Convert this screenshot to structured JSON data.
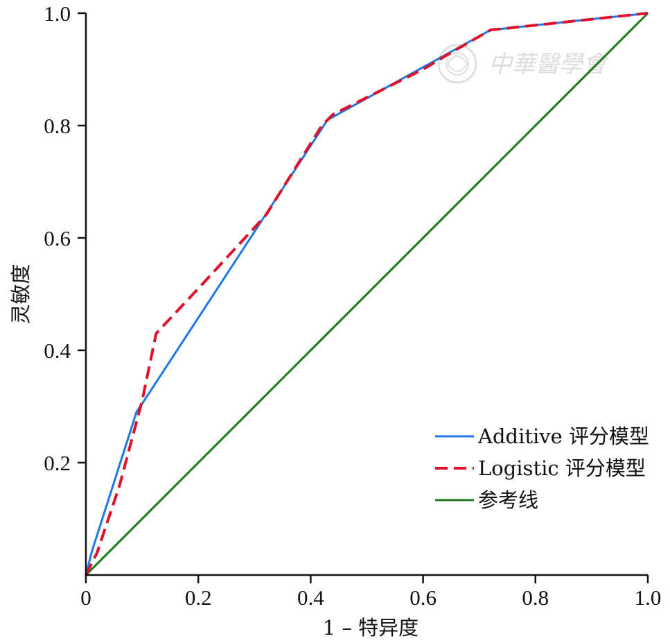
{
  "chart_data": {
    "type": "line",
    "title": "",
    "xlabel": "1 – 特异度",
    "ylabel": "灵敏度",
    "xlim": [
      0,
      1
    ],
    "ylim": [
      0,
      1
    ],
    "x_ticks": [
      {
        "value": 0,
        "label": "0"
      },
      {
        "value": 0.2,
        "label": "0.2"
      },
      {
        "value": 0.4,
        "label": "0.4"
      },
      {
        "value": 0.6,
        "label": "0.6"
      },
      {
        "value": 0.8,
        "label": "0.8"
      },
      {
        "value": 1.0,
        "label": "1.0"
      }
    ],
    "y_ticks": [
      {
        "value": 0.2,
        "label": "0.2"
      },
      {
        "value": 0.4,
        "label": "0.4"
      },
      {
        "value": 0.6,
        "label": "0.6"
      },
      {
        "value": 0.8,
        "label": "0.8"
      },
      {
        "value": 1.0,
        "label": "1.0"
      }
    ],
    "grid": false,
    "legend_position": "bottom-right",
    "series": [
      {
        "name": "Additive 评分模型",
        "color": "#1f77e6",
        "style": "solid",
        "points": [
          [
            0,
            0
          ],
          [
            0.01,
            0.04
          ],
          [
            0.09,
            0.29
          ],
          [
            0.11,
            0.32
          ],
          [
            0.43,
            0.81
          ],
          [
            0.72,
            0.97
          ],
          [
            1.0,
            1.0
          ]
        ]
      },
      {
        "name": "Logistic 评分模型",
        "color": "#e0102a",
        "style": "dashed",
        "points": [
          [
            0,
            0
          ],
          [
            0.02,
            0.04
          ],
          [
            0.06,
            0.16
          ],
          [
            0.1,
            0.31
          ],
          [
            0.125,
            0.43
          ],
          [
            0.2,
            0.51
          ],
          [
            0.32,
            0.64
          ],
          [
            0.42,
            0.8
          ],
          [
            0.44,
            0.82
          ],
          [
            0.52,
            0.86
          ],
          [
            0.6,
            0.9
          ],
          [
            0.65,
            0.93
          ],
          [
            0.72,
            0.97
          ],
          [
            1.0,
            1.0
          ]
        ]
      },
      {
        "name": "参考线",
        "color": "#1a7a1a",
        "style": "solid",
        "points": [
          [
            0,
            0
          ],
          [
            1,
            1
          ]
        ]
      }
    ]
  },
  "watermark": {
    "text": "中華醫學會",
    "icon": "society-seal-icon"
  }
}
